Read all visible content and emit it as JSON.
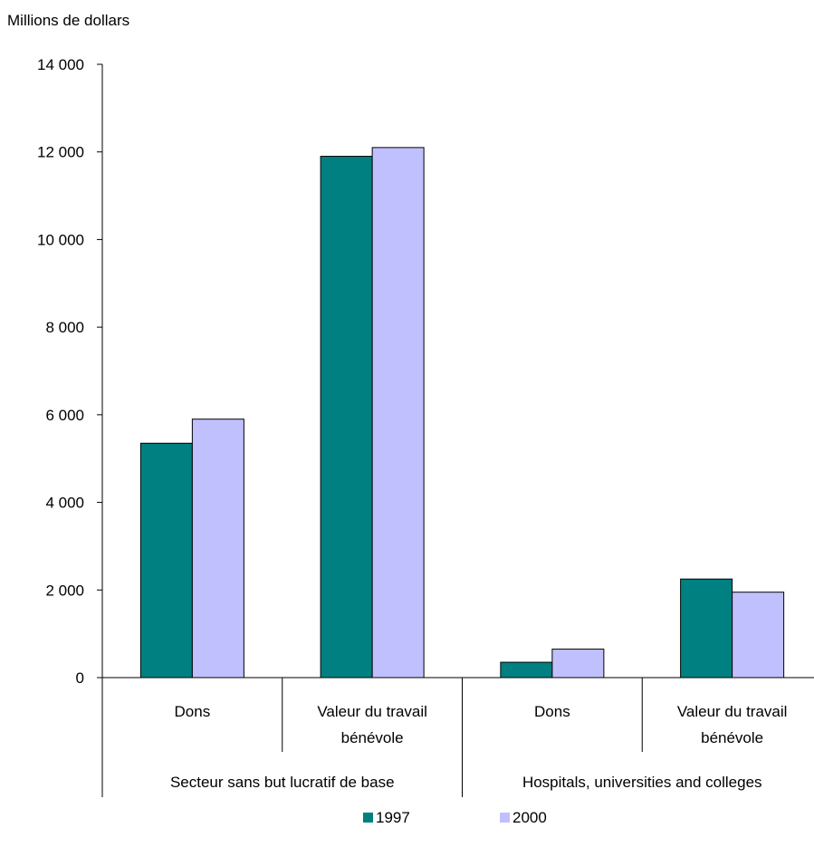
{
  "chart_data": {
    "type": "bar",
    "ylabel": "Millions de dollars",
    "ylim": [
      0,
      14000
    ],
    "yticks": [
      {
        "value": 0,
        "label": "0"
      },
      {
        "value": 2000,
        "label": "2 000"
      },
      {
        "value": 4000,
        "label": "4 000"
      },
      {
        "value": 6000,
        "label": "6 000"
      },
      {
        "value": 8000,
        "label": "8 000"
      },
      {
        "value": 10000,
        "label": "10 000"
      },
      {
        "value": 12000,
        "label": "12 000"
      },
      {
        "value": 14000,
        "label": "14 000"
      }
    ],
    "categories": [
      {
        "label": [
          "Dons"
        ],
        "group": "Secteur sans but lucratif de base"
      },
      {
        "label": [
          "Valeur du travail",
          "bénévole"
        ],
        "group": "Secteur sans but lucratif de base"
      },
      {
        "label": [
          "Dons"
        ],
        "group": "Hospitals, universities and colleges"
      },
      {
        "label": [
          "Valeur du travail",
          "bénévole"
        ],
        "group": "Hospitals, universities and colleges"
      }
    ],
    "groups": [
      "Secteur sans but lucratif de base",
      "Hospitals, universities and colleges"
    ],
    "series": [
      {
        "name": "1997",
        "color": "#008080",
        "values": [
          5350,
          11900,
          350,
          2250
        ]
      },
      {
        "name": "2000",
        "color": "#c0c0ff",
        "values": [
          5900,
          12100,
          650,
          1950
        ]
      }
    ],
    "legend_position": "bottom",
    "grid": false
  }
}
